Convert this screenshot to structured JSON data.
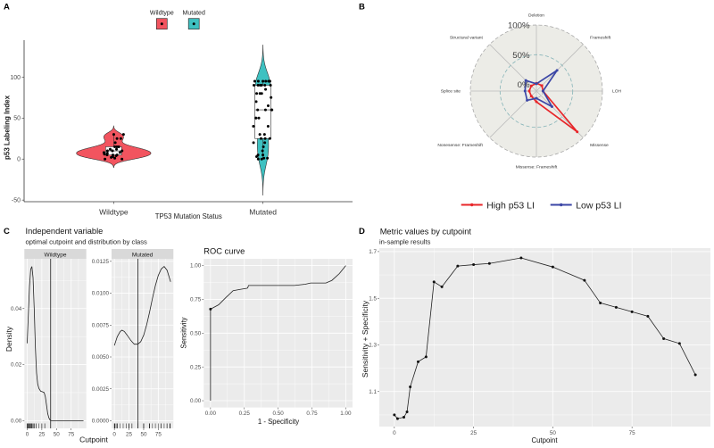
{
  "figure": {
    "panel_labels": [
      "A",
      "B",
      "C",
      "D"
    ]
  },
  "chart_data": [
    {
      "panel": "A",
      "type": "violin",
      "xlabel": "TP53 Mutation Status",
      "ylabel": "p53 Labeling Index",
      "categories": [
        "Wildtype",
        "Mutated"
      ],
      "ylim": [
        -52,
        145
      ],
      "yticks": [
        -50,
        0,
        50,
        100
      ],
      "ytick_labels": [
        "-50",
        "0",
        "50",
        "100"
      ],
      "legend": {
        "position": "top",
        "entries": [
          "Wildtype",
          "Mutated"
        ]
      },
      "overlays": [
        "boxplot",
        "jittered points"
      ],
      "series": [
        {
          "name": "Wildtype",
          "color": "#F2545F",
          "bandwidth": 3.47,
          "values": [
            0,
            0,
            1,
            2,
            3,
            4,
            5,
            5,
            5,
            6,
            7,
            8,
            8,
            10,
            10,
            10,
            10,
            12,
            12,
            15,
            15,
            15,
            20,
            25,
            25,
            30,
            30
          ]
        },
        {
          "name": "Mutated",
          "color": "#3EC1C1",
          "bandwidth": 14.7,
          "values": [
            0,
            0,
            1,
            1,
            3,
            5,
            5,
            10,
            15,
            20,
            20,
            25,
            25,
            25,
            30,
            30,
            40,
            40,
            50,
            50,
            50,
            60,
            60,
            60,
            60,
            65,
            70,
            75,
            80,
            80,
            80,
            85,
            90,
            90,
            90,
            90,
            90,
            90,
            95,
            95,
            95,
            95,
            95,
            95,
            95
          ]
        }
      ]
    },
    {
      "panel": "B",
      "type": "radar",
      "axes": [
        "Deletion",
        "Frameshift",
        "LOH",
        "Missense",
        "Missense: Frameshift",
        "Nonesense: Frameshift",
        "Splice site",
        "Structural variant"
      ],
      "grid": {
        "values": [
          0,
          0.5,
          1
        ],
        "labels": [
          "0%",
          "50%",
          "100%"
        ]
      },
      "legend": {
        "position": "bottom"
      },
      "series": [
        {
          "name": "High p53 LI",
          "color": "#E8262A",
          "values": [
            0.02,
            0.02,
            0.0,
            0.86,
            0.07,
            0.01,
            0.01,
            0.01
          ]
        },
        {
          "name": "Low p53 LI",
          "color": "#3B46A6",
          "values": [
            0.01,
            0.38,
            0.0,
            0.26,
            0.01,
            0.11,
            0.08,
            0.14
          ]
        }
      ]
    },
    {
      "panel": "C",
      "type": "line",
      "title": "Independent variable",
      "subtitle": "optimal cutpoint and distribution by class",
      "xlabel": "Cutpoint",
      "ylabel": "Density",
      "cutpoint": 40,
      "xlim": [
        -4.8,
        100.8
      ],
      "xticks": [
        0,
        25,
        50,
        75
      ],
      "xtick_labels": [
        "0",
        "25",
        "50",
        "75"
      ],
      "facets": [
        {
          "label": "Wildtype",
          "ylim": [
            -0.00275,
            0.05775
          ],
          "yticks": [
            0,
            0.02,
            0.04
          ],
          "ytick_labels": [
            "0.00",
            "0.02",
            "0.04"
          ],
          "x": [
            0,
            2,
            4,
            6,
            8,
            10,
            12,
            14,
            16,
            18,
            20,
            23,
            26,
            29,
            31,
            33,
            35,
            37,
            39,
            41,
            50,
            60,
            70,
            80,
            90,
            96
          ],
          "y": [
            0.0276,
            0.038,
            0.048,
            0.054,
            0.055,
            0.051,
            0.04,
            0.026,
            0.017,
            0.013,
            0.0115,
            0.0105,
            0.0103,
            0.01,
            0.0085,
            0.0055,
            0.0025,
            0.001,
            0.0002,
            0,
            0,
            0,
            0,
            0,
            0,
            0
          ]
        },
        {
          "label": "Mutated",
          "ylim": [
            -0.0006,
            0.0127
          ],
          "yticks": [
            0,
            0.0025,
            0.005,
            0.0075,
            0.01,
            0.0125
          ],
          "ytick_labels": [
            "0.0000",
            "0.0025",
            "0.0050",
            "0.0075",
            "0.0100",
            "0.0125"
          ],
          "x": [
            0,
            5,
            10,
            13,
            17,
            22,
            28,
            34,
            40,
            45,
            50,
            55,
            60,
            65,
            70,
            75,
            80,
            85,
            90,
            96
          ],
          "y": [
            0.0059,
            0.0066,
            0.007,
            0.0071,
            0.007,
            0.0067,
            0.0063,
            0.006,
            0.006,
            0.0062,
            0.0067,
            0.0075,
            0.0085,
            0.0096,
            0.0106,
            0.0114,
            0.0119,
            0.0121,
            0.0118,
            0.0109
          ]
        }
      ]
    },
    {
      "panel": "C",
      "type": "line",
      "title": "ROC curve",
      "xlabel": "1 - Specificity",
      "ylabel": "Sensitivity",
      "xlim": [
        -0.05,
        1.05
      ],
      "ylim": [
        -0.05,
        1.05
      ],
      "ticks": [
        0,
        0.25,
        0.5,
        0.75,
        1
      ],
      "tick_labels": [
        "0.00",
        "0.25",
        "0.50",
        "0.75",
        "1.00"
      ],
      "x": [
        0,
        0,
        0.06,
        0.11,
        0.167,
        0.22,
        0.27,
        0.275,
        0.281,
        0.45,
        0.62,
        0.7,
        0.74,
        0.853,
        0.897,
        0.952,
        1.0
      ],
      "y": [
        0,
        0.678,
        0.71,
        0.76,
        0.814,
        0.824,
        0.832,
        0.835,
        0.853,
        0.853,
        0.853,
        0.862,
        0.871,
        0.871,
        0.89,
        0.94,
        1.0
      ],
      "optimal_point": {
        "x": 0,
        "y": 0.678
      }
    },
    {
      "panel": "D",
      "type": "line",
      "title": "Metric values by cutpoint",
      "subtitle": "in-sample results",
      "xlabel": "Cutpoint",
      "ylabel": "Sensitivity + Specificity",
      "xlim": [
        -4.75,
        99.75
      ],
      "ylim": [
        0.95,
        1.715
      ],
      "xticks": [
        0,
        25,
        50,
        75
      ],
      "xtick_labels": [
        "0",
        "25",
        "50",
        "75"
      ],
      "yticks": [
        1.1,
        1.3,
        1.5,
        1.7
      ],
      "ytick_labels": [
        "1.1",
        "1.3",
        "1.5",
        "1.7"
      ],
      "x": [
        0,
        1,
        3,
        4,
        5,
        7.5,
        10,
        12.5,
        15,
        20,
        25,
        30,
        40,
        50,
        60,
        65,
        70,
        75,
        80,
        85,
        90,
        95
      ],
      "y": [
        1.0,
        0.984,
        0.99,
        1.013,
        1.12,
        1.228,
        1.249,
        1.57,
        1.549,
        1.638,
        1.644,
        1.649,
        1.673,
        1.634,
        1.577,
        1.48,
        1.461,
        1.442,
        1.423,
        1.327,
        1.306,
        1.172
      ]
    }
  ]
}
